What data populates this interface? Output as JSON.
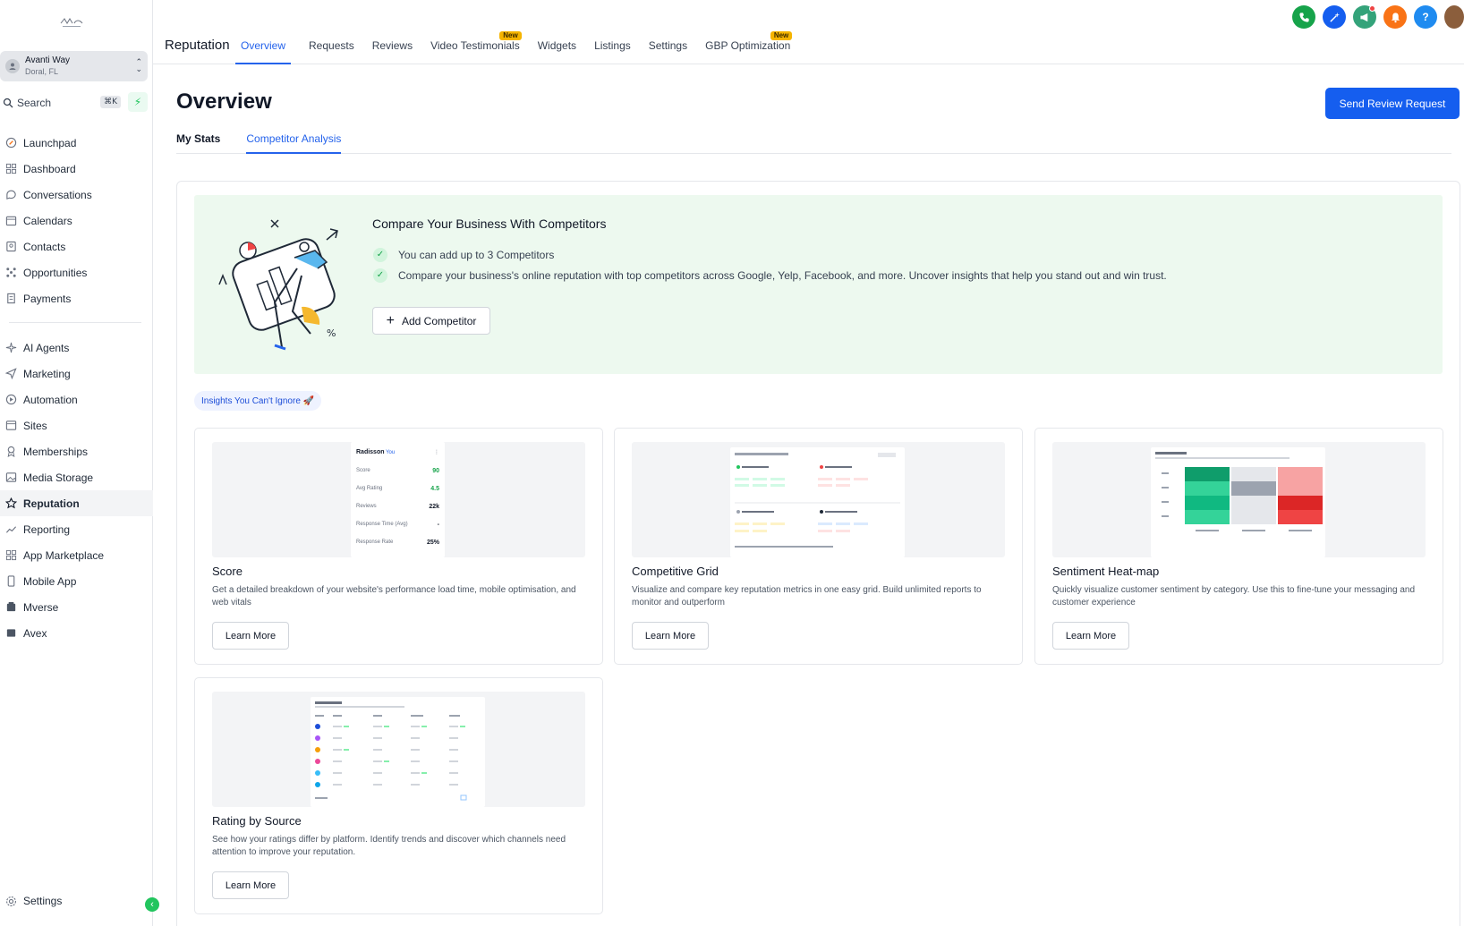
{
  "sidebar": {
    "location": {
      "name": "Avanti Way",
      "sub": "Doral, FL"
    },
    "search": {
      "label": "Search",
      "shortcut": "⌘K"
    },
    "items_top": [
      {
        "label": "Launchpad",
        "icon": "rocket-icon"
      },
      {
        "label": "Dashboard",
        "icon": "grid-icon"
      },
      {
        "label": "Conversations",
        "icon": "chat-icon"
      },
      {
        "label": "Calendars",
        "icon": "calendar-icon"
      },
      {
        "label": "Contacts",
        "icon": "contacts-icon"
      },
      {
        "label": "Opportunities",
        "icon": "opportunities-icon"
      },
      {
        "label": "Payments",
        "icon": "payments-icon"
      }
    ],
    "items_bottom": [
      {
        "label": "AI Agents",
        "icon": "sparkle-icon"
      },
      {
        "label": "Marketing",
        "icon": "send-icon"
      },
      {
        "label": "Automation",
        "icon": "automation-icon"
      },
      {
        "label": "Sites",
        "icon": "sites-icon"
      },
      {
        "label": "Memberships",
        "icon": "membership-icon"
      },
      {
        "label": "Media Storage",
        "icon": "image-icon"
      },
      {
        "label": "Reputation",
        "icon": "star-icon",
        "active": true
      },
      {
        "label": "Reporting",
        "icon": "trend-icon"
      },
      {
        "label": "App Marketplace",
        "icon": "apps-icon"
      },
      {
        "label": "Mobile App",
        "icon": "mobile-icon"
      },
      {
        "label": "Mverse",
        "icon": "mverse-icon"
      },
      {
        "label": "Avex",
        "icon": "avex-icon"
      }
    ],
    "settings_label": "Settings"
  },
  "topbar": {
    "title": "Reputation",
    "tabs": [
      {
        "label": "Overview",
        "active": true
      },
      {
        "label": "Requests"
      },
      {
        "label": "Reviews"
      },
      {
        "label": "Video Testimonials",
        "badge": "New"
      },
      {
        "label": "Widgets"
      },
      {
        "label": "Listings"
      },
      {
        "label": "Settings"
      },
      {
        "label": "GBP Optimization",
        "badge": "New"
      }
    ],
    "icons": [
      {
        "name": "phone-icon",
        "color": "#16a34a"
      },
      {
        "name": "magic-icon",
        "color": "#155eef"
      },
      {
        "name": "megaphone-icon",
        "color": "#34a37a"
      },
      {
        "name": "bell-icon",
        "color": "#f97316"
      },
      {
        "name": "help-icon",
        "color": "#1f8bf0"
      }
    ]
  },
  "main": {
    "title": "Overview",
    "primary_button": "Send Review Request",
    "subtabs": [
      {
        "label": "My Stats"
      },
      {
        "label": "Competitor Analysis",
        "active": true
      }
    ],
    "hero": {
      "title": "Compare Your Business With Competitors",
      "bullets": [
        "You can add up to 3 Competitors",
        "Compare your business's online reputation with top competitors across Google, Yelp, Facebook, and more. Uncover insights that help you stand out and win trust."
      ],
      "button": "Add Competitor"
    },
    "insights_tag": "Insights You Can't Ignore 🚀",
    "cards": [
      {
        "title": "Score",
        "desc": "Get a detailed breakdown of your website's performance load time, mobile optimisation, and web vitals",
        "button": "Learn More",
        "preview": {
          "header": "Radisson",
          "header_badge": "You",
          "rows": [
            {
              "label": "Score",
              "value": "90"
            },
            {
              "label": "Avg Rating",
              "value": "4.5"
            },
            {
              "label": "Reviews",
              "value": "22k"
            },
            {
              "label": "Response Time (Avg)",
              "value": "-"
            },
            {
              "label": "Response Rate",
              "value": "25%"
            }
          ]
        }
      },
      {
        "title": "Competitive Grid",
        "desc": "Visualize and compare key reputation metrics in one easy grid. Build unlimited reports to monitor and outperform",
        "button": "Learn More"
      },
      {
        "title": "Sentiment Heat-map",
        "desc": "Quickly visualize customer sentiment by category. Use this to fine-tune your messaging and customer experience",
        "button": "Learn More"
      },
      {
        "title": "Rating by Source",
        "desc": "See how your ratings differ by platform. Identify trends and discover which channels need attention to improve your reputation.",
        "button": "Learn More"
      }
    ]
  },
  "colors": {
    "accent": "#155eef",
    "hero_bg": "#edf9ef",
    "success": "#22c55e"
  }
}
